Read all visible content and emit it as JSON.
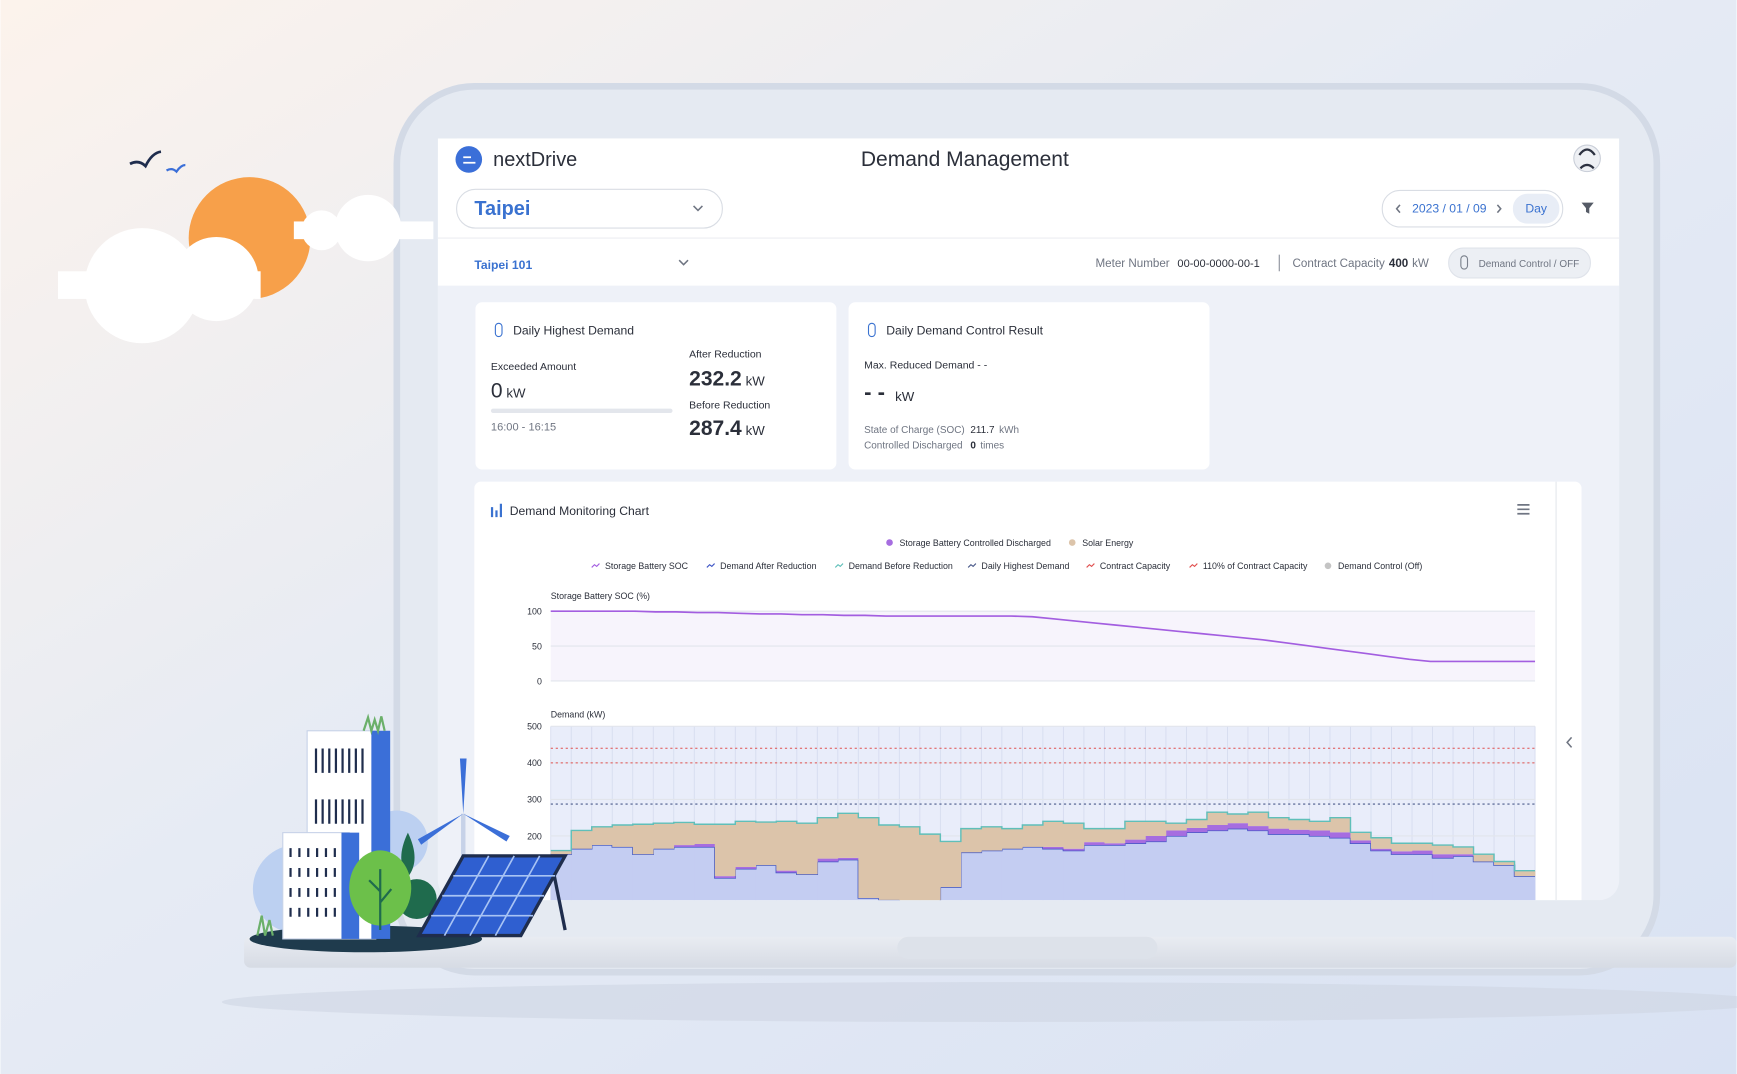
{
  "header": {
    "logo": "nextDrive",
    "title": "Demand Management",
    "location": "Taipei",
    "date": "2023 / 01 / 09",
    "period": "Day"
  },
  "site_bar": {
    "site": "Taipei 101",
    "meter_label": "Meter Number",
    "meter_number": "00-00-0000-00-1",
    "capacity_label": "Contract Capacity",
    "capacity_value": 400,
    "capacity_unit": "kW",
    "control": "Demand Control / OFF"
  },
  "cards": [
    {
      "title": "Daily Highest Demand",
      "exceeded_label": "Exceeded Amount",
      "exceeded_value": 0,
      "unit": "kW",
      "time": "16:00 - 16:15",
      "after_label": "After Reduction",
      "after_value": 232.2,
      "before_label": "Before Reduction",
      "before_value": 287.4
    },
    {
      "title": "Daily Demand Control Result",
      "reduced_label": "Max. Reduced Demand - -",
      "reduced_value": "- -",
      "unit": "kW",
      "soc_label": "State of Charge (SOC)",
      "soc_value": 211.7,
      "soc_unit": "kWh",
      "discharged_label": "Controlled Discharged",
      "discharged_value": 0,
      "discharged_unit": "times"
    }
  ],
  "chart_panel": {
    "title": "Demand Monitoring Chart"
  },
  "chart_data": [
    {
      "type": "line",
      "y_label": "Storage Battery SOC (%)",
      "ylim": [
        0,
        100
      ],
      "yticks": [
        0,
        50,
        100
      ],
      "grid": true,
      "series": [
        {
          "name": "Storage Battery SOC",
          "color": "#a35ee0",
          "values": [
            100,
            100,
            100,
            100,
            100,
            99,
            99,
            98,
            98,
            97,
            96,
            96,
            95,
            95,
            94,
            94,
            93,
            93,
            93,
            93,
            93,
            93,
            93,
            92,
            89,
            86,
            83,
            80,
            77,
            74,
            71,
            68,
            65,
            62,
            59,
            55,
            51,
            47,
            43,
            39,
            35,
            31,
            28,
            28,
            28,
            28,
            28,
            28
          ]
        }
      ]
    },
    {
      "type": "area",
      "y_label": "Demand (kW)",
      "ylim": [
        0,
        500
      ],
      "yticks": [
        200,
        300,
        400,
        500
      ],
      "grid": true,
      "series": [
        {
          "name": "Demand After Reduction",
          "color": "#3e55c5",
          "fill": "#c4cdf2",
          "mark": "area",
          "values": [
            150,
            165,
            175,
            170,
            150,
            165,
            170,
            170,
            85,
            110,
            120,
            100,
            95,
            130,
            135,
            30,
            25,
            20,
            20,
            60,
            155,
            160,
            165,
            170,
            165,
            160,
            175,
            175,
            180,
            185,
            200,
            210,
            215,
            220,
            215,
            205,
            205,
            200,
            195,
            180,
            160,
            150,
            150,
            140,
            145,
            130,
            120,
            90
          ]
        },
        {
          "name": "Storage Battery Controlled Discharged",
          "color": "#a66de0",
          "mark": "stack",
          "values": [
            0,
            0,
            0,
            0,
            0,
            0,
            5,
            8,
            5,
            5,
            0,
            5,
            0,
            8,
            5,
            0,
            0,
            0,
            0,
            0,
            0,
            0,
            0,
            0,
            5,
            5,
            8,
            5,
            10,
            15,
            15,
            12,
            15,
            15,
            12,
            15,
            12,
            15,
            15,
            8,
            5,
            8,
            10,
            10,
            5,
            0,
            0,
            0
          ]
        },
        {
          "name": "Solar Energy",
          "color": "#dcc4aa",
          "mark": "stack",
          "values": [
            10,
            50,
            50,
            60,
            82,
            70,
            62,
            54,
            142,
            125,
            118,
            135,
            140,
            112,
            122,
            220,
            205,
            205,
            185,
            125,
            65,
            65,
            55,
            60,
            70,
            70,
            37,
            40,
            50,
            40,
            20,
            23,
            35,
            25,
            38,
            30,
            28,
            25,
            40,
            22,
            30,
            22,
            20,
            25,
            20,
            20,
            10,
            15
          ]
        },
        {
          "name": "Demand Before Reduction",
          "color": "#5fbfb9",
          "mark": "line",
          "values": [
            160,
            215,
            225,
            230,
            232,
            235,
            237,
            232,
            232,
            240,
            238,
            240,
            235,
            250,
            262,
            250,
            230,
            225,
            205,
            185,
            220,
            225,
            220,
            230,
            240,
            235,
            220,
            220,
            240,
            240,
            235,
            245,
            265,
            260,
            265,
            250,
            245,
            240,
            250,
            210,
            195,
            180,
            180,
            175,
            170,
            150,
            130,
            105
          ]
        }
      ],
      "reference_lines": [
        {
          "name": "Daily Highest Demand",
          "value": 287.4,
          "color": "#4a5a8a"
        },
        {
          "name": "Contract Capacity",
          "value": 400,
          "color": "#e0504f"
        },
        {
          "name": "110% of Contract Capacity",
          "value": 440,
          "color": "#e0504f"
        }
      ],
      "status": {
        "name": "Demand Control (Off)",
        "color": "#c4c4c4"
      }
    }
  ]
}
